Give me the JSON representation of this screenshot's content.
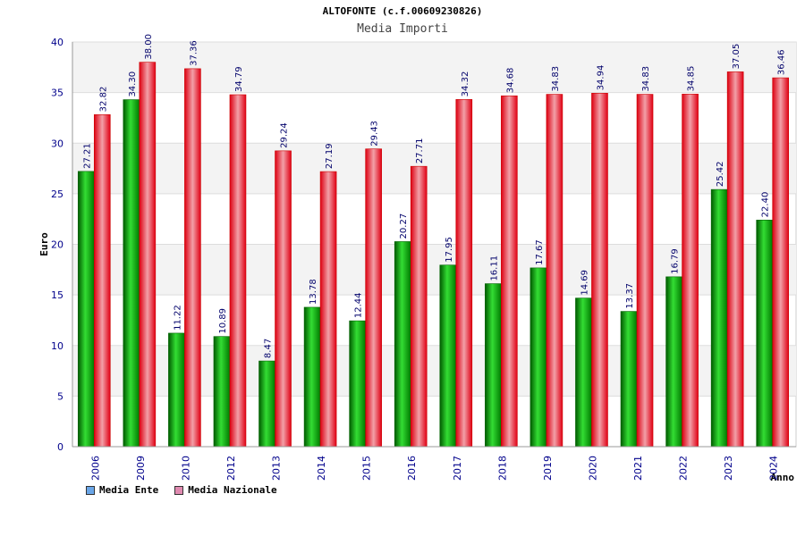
{
  "chart_data": {
    "type": "bar",
    "title": "ALTOFONTE (c.f.00609230826)",
    "subtitle": "Media Importi",
    "xlabel": "Anno",
    "ylabel": "Euro",
    "ylim": [
      0,
      40
    ],
    "yticks": [
      0,
      5,
      10,
      15,
      20,
      25,
      30,
      35,
      40
    ],
    "categories": [
      "2006",
      "2009",
      "2010",
      "2012",
      "2013",
      "2014",
      "2015",
      "2016",
      "2017",
      "2018",
      "2019",
      "2020",
      "2021",
      "2022",
      "2023",
      "2024"
    ],
    "series": [
      {
        "name": "Media Ente",
        "color": "#00aa00",
        "values": [
          27.21,
          34.3,
          11.22,
          10.89,
          8.47,
          13.78,
          12.44,
          20.27,
          17.95,
          16.11,
          17.67,
          14.69,
          13.37,
          16.79,
          25.42,
          22.4
        ],
        "labels": [
          "27.21",
          "34.30",
          "11.22",
          "10.89",
          "8.47",
          "13.78",
          "12.44",
          "20.27",
          "17.95",
          "16.11",
          "17.67",
          "14.69",
          "13.37",
          "16.79",
          "25.42",
          "22.40"
        ]
      },
      {
        "name": "Media Nazionale",
        "color": "#ee1111",
        "values": [
          32.82,
          38.0,
          37.36,
          34.79,
          29.24,
          27.19,
          29.43,
          27.71,
          34.32,
          34.68,
          34.83,
          34.94,
          34.83,
          34.85,
          37.05,
          36.46
        ],
        "labels": [
          "32.82",
          "38.00",
          "37.36",
          "34.79",
          "29.24",
          "27.19",
          "29.43",
          "27.71",
          "34.32",
          "34.68",
          "34.83",
          "34.94",
          "34.83",
          "34.85",
          "37.05",
          "36.46"
        ]
      }
    ],
    "legend": {
      "placement": "bottom-left",
      "items": [
        {
          "label": "Media Ente",
          "color": "#6aa6e8"
        },
        {
          "label": "Media Nazionale",
          "color": "#e08ab0"
        }
      ]
    },
    "grid": true
  }
}
